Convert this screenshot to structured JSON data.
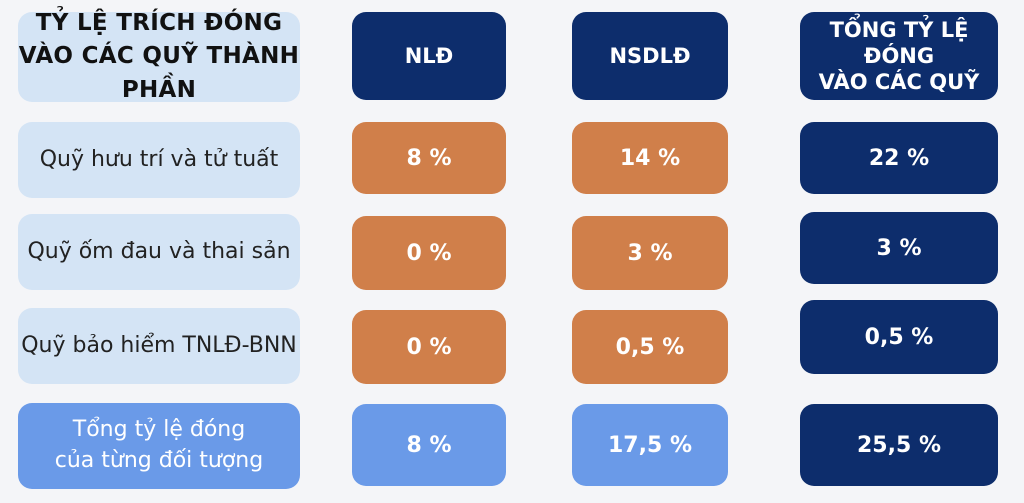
{
  "header": {
    "title_line1": "TỶ LỆ TRÍCH ĐÓNG",
    "title_line2": "VÀO CÁC QUỸ THÀNH PHẦN",
    "col_nld": "NLĐ",
    "col_nsdld": "NSDLĐ",
    "col_total_line1": "TỔNG TỶ LỆ ĐÓNG",
    "col_total_line2": "VÀO CÁC QUỸ"
  },
  "rows": [
    {
      "label": "Quỹ hưu trí và tử tuất",
      "nld": "8 %",
      "nsdld": "14 %",
      "total": "22 %"
    },
    {
      "label": "Quỹ ốm đau và thai sản",
      "nld": "0 %",
      "nsdld": "3 %",
      "total": "3 %"
    },
    {
      "label": "Quỹ bảo hiểm TNLĐ-BNN",
      "nld": "0 %",
      "nsdld": "0,5 %",
      "total": "0,5 %"
    }
  ],
  "summary": {
    "label_line1": "Tổng tỷ lệ đóng",
    "label_line2": "của từng đối tượng",
    "nld": "8 %",
    "nsdld": "17,5 %",
    "total": "25,5 %"
  },
  "colors": {
    "light_blue": "#d4e4f5",
    "navy": "#0d2d6c",
    "orange": "#d07f4a",
    "mid_blue": "#6a9ae8"
  }
}
